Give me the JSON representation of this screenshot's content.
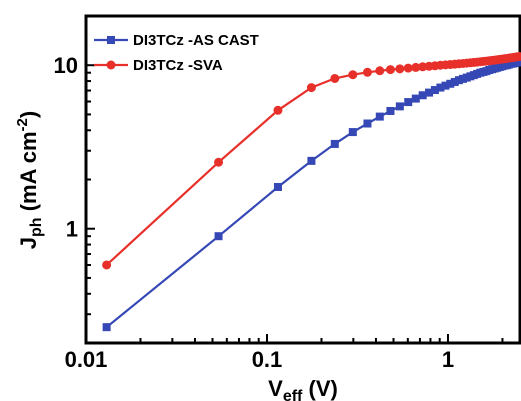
{
  "chart_data": {
    "type": "line",
    "title": "",
    "x_scale": "log",
    "y_scale": "log",
    "xlim": [
      0.01,
      2.5
    ],
    "ylim": [
      0.2,
      20
    ],
    "x_ticks": [
      0.01,
      0.1,
      1
    ],
    "x_tick_labels": [
      "0.01",
      "0.1",
      "1"
    ],
    "y_ticks": [
      1,
      10
    ],
    "y_tick_labels": [
      "1",
      "10"
    ],
    "xlabel": {
      "main": "V",
      "sub": "eff",
      "rest": " (V)"
    },
    "ylabel": {
      "main": "J",
      "sub": "ph",
      "rest": " (mA cm",
      "sup": "-2",
      "close": ")"
    },
    "legend_position": "top-left",
    "series": [
      {
        "name": "DI3TCz -AS CAST",
        "color": "#3548b5",
        "marker": "square",
        "x": [
          0.013,
          0.054,
          0.115,
          0.176,
          0.237,
          0.298,
          0.359,
          0.42,
          0.481,
          0.542,
          0.603,
          0.664,
          0.725,
          0.786,
          0.847,
          0.908,
          0.969,
          1.03,
          1.09,
          1.15,
          1.21,
          1.27,
          1.33,
          1.39,
          1.45,
          1.51,
          1.57,
          1.63,
          1.69,
          1.75,
          1.81,
          1.87,
          1.93,
          1.99,
          2.05,
          2.11,
          2.17,
          2.23,
          2.29,
          2.35,
          2.41,
          2.47
        ],
        "y": [
          0.25,
          0.9,
          1.8,
          2.6,
          3.3,
          3.9,
          4.4,
          4.85,
          5.25,
          5.6,
          5.95,
          6.25,
          6.55,
          6.8,
          7.05,
          7.3,
          7.5,
          7.7,
          7.9,
          8.1,
          8.25,
          8.4,
          8.55,
          8.7,
          8.85,
          9.0,
          9.1,
          9.2,
          9.35,
          9.45,
          9.55,
          9.65,
          9.75,
          9.85,
          9.95,
          10.0,
          10.1,
          10.2,
          10.25,
          10.3,
          10.4,
          10.5
        ]
      },
      {
        "name": "DI3TCz -SVA",
        "color": "#e8302b",
        "marker": "circle",
        "x": [
          0.013,
          0.054,
          0.115,
          0.176,
          0.237,
          0.298,
          0.359,
          0.42,
          0.481,
          0.542,
          0.603,
          0.664,
          0.725,
          0.786,
          0.847,
          0.908,
          0.969,
          1.03,
          1.09,
          1.15,
          1.21,
          1.27,
          1.33,
          1.39,
          1.45,
          1.51,
          1.57,
          1.63,
          1.69,
          1.75,
          1.81,
          1.87,
          1.93,
          1.99,
          2.05,
          2.11,
          2.17,
          2.23,
          2.29,
          2.35,
          2.41,
          2.47
        ],
        "y": [
          0.6,
          2.55,
          5.3,
          7.3,
          8.3,
          8.75,
          9.05,
          9.25,
          9.4,
          9.5,
          9.6,
          9.7,
          9.78,
          9.85,
          9.92,
          10.0,
          10.05,
          10.1,
          10.15,
          10.2,
          10.25,
          10.3,
          10.35,
          10.4,
          10.45,
          10.5,
          10.55,
          10.6,
          10.65,
          10.7,
          10.75,
          10.8,
          10.85,
          10.9,
          10.95,
          11.0,
          11.05,
          11.1,
          11.15,
          11.2,
          11.25,
          11.3
        ]
      }
    ]
  }
}
